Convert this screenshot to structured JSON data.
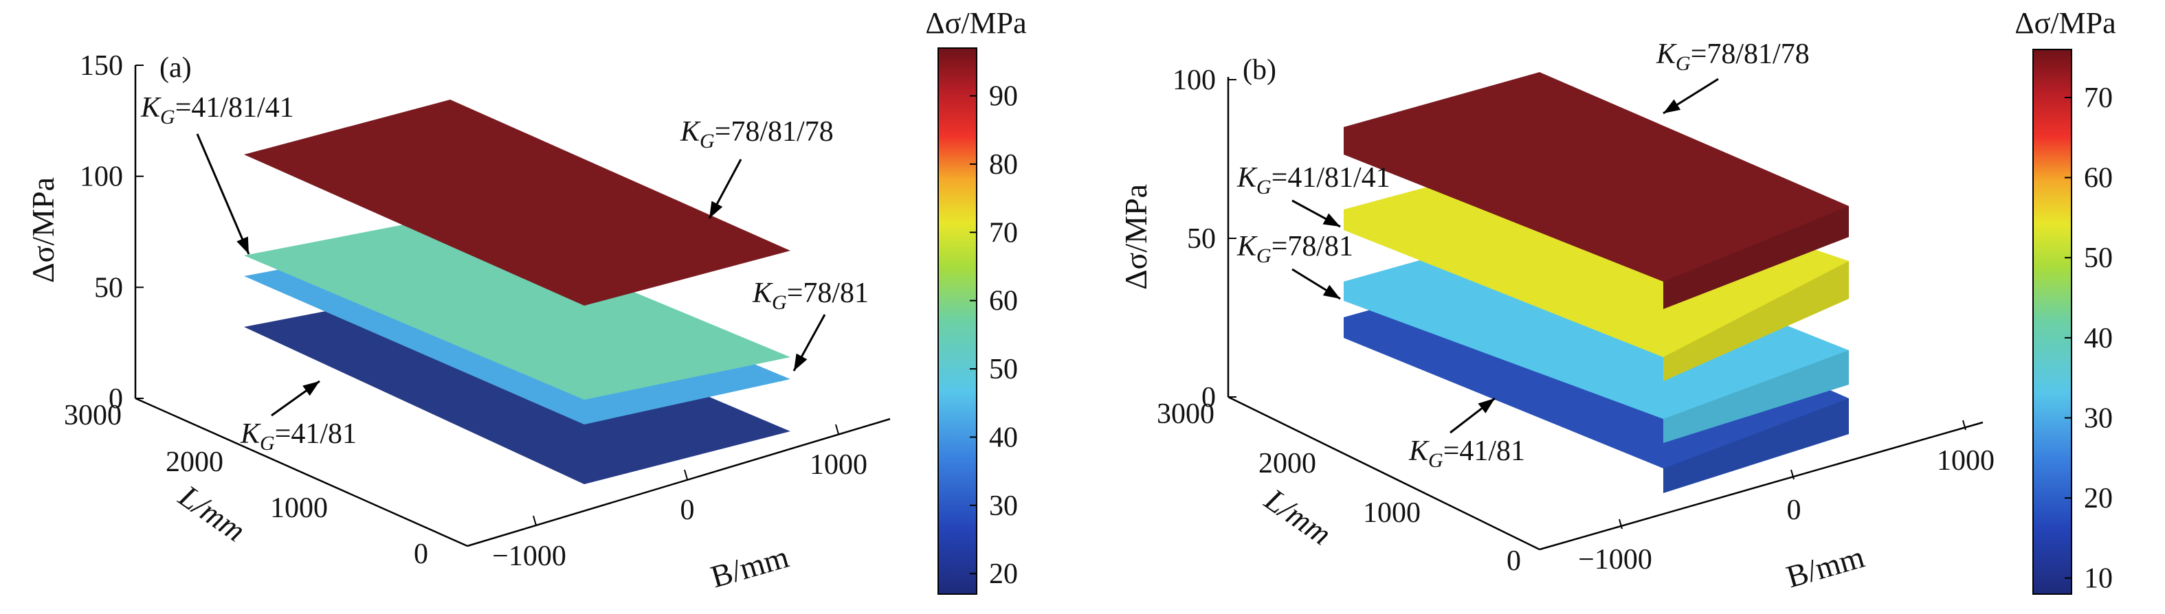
{
  "chart_data": [
    {
      "type": "surface3d",
      "panel_label": "(a)",
      "zlabel": "Δσ/MPa",
      "xlabel": "B/mm",
      "ylabel": "L/mm",
      "zlim": [
        0,
        150
      ],
      "z_ticks": [
        0,
        50,
        100,
        150
      ],
      "x_ticks": [
        -1000,
        0,
        1000
      ],
      "y_ticks": [
        0,
        1000,
        2000,
        3000
      ],
      "colorbar": {
        "title": "Δσ/MPa",
        "range": [
          17,
          97
        ],
        "ticks": [
          20,
          30,
          40,
          50,
          60,
          70,
          80,
          90
        ]
      },
      "series": [
        {
          "name": "K_G=78/81/78",
          "label_main": "K",
          "label_sub": "G",
          "label_rest": "=78/81/78",
          "value": 97,
          "color": "#7a1a1f"
        },
        {
          "name": "K_G=41/81/41",
          "label_main": "K",
          "label_sub": "G",
          "label_rest": "=41/81/41",
          "value": 54,
          "color": "#6fcfaf"
        },
        {
          "name": "K_G=78/81",
          "label_main": "K",
          "label_sub": "G",
          "label_rest": "=78/81",
          "value": 42,
          "color": "#4aa9e3"
        },
        {
          "name": "K_G=41/81",
          "label_main": "K",
          "label_sub": "G",
          "label_rest": "=41/81",
          "value": 19,
          "color": "#273a86"
        }
      ]
    },
    {
      "type": "surface3d",
      "panel_label": "(b)",
      "zlabel": "Δσ/MPa",
      "xlabel": "B/mm",
      "ylabel": "L/mm",
      "zlim": [
        0,
        100
      ],
      "z_ticks": [
        0,
        50,
        100
      ],
      "x_ticks": [
        -1000,
        0,
        1000
      ],
      "y_ticks": [
        0,
        1000,
        2000,
        3000
      ],
      "colorbar": {
        "title": "Δσ/MPa",
        "range": [
          8,
          76
        ],
        "ticks": [
          10,
          20,
          30,
          40,
          50,
          60,
          70
        ]
      },
      "series": [
        {
          "name": "K_G=78/81/78",
          "label_main": "K",
          "label_sub": "G",
          "label_rest": "=78/81/78",
          "value": 75,
          "color": "#7a1a1f"
        },
        {
          "name": "K_G=41/81/41",
          "label_main": "K",
          "label_sub": "G",
          "label_rest": "=41/81/41",
          "value": 52,
          "color": "#e3e32a"
        },
        {
          "name": "K_G=78/81",
          "label_main": "K",
          "label_sub": "G",
          "label_rest": "=78/81",
          "value": 32,
          "color": "#55c6ea"
        },
        {
          "name": "K_G=41/81",
          "label_main": "K",
          "label_sub": "G",
          "label_rest": "=41/81",
          "value": 20,
          "color": "#2a50b8"
        }
      ]
    }
  ]
}
